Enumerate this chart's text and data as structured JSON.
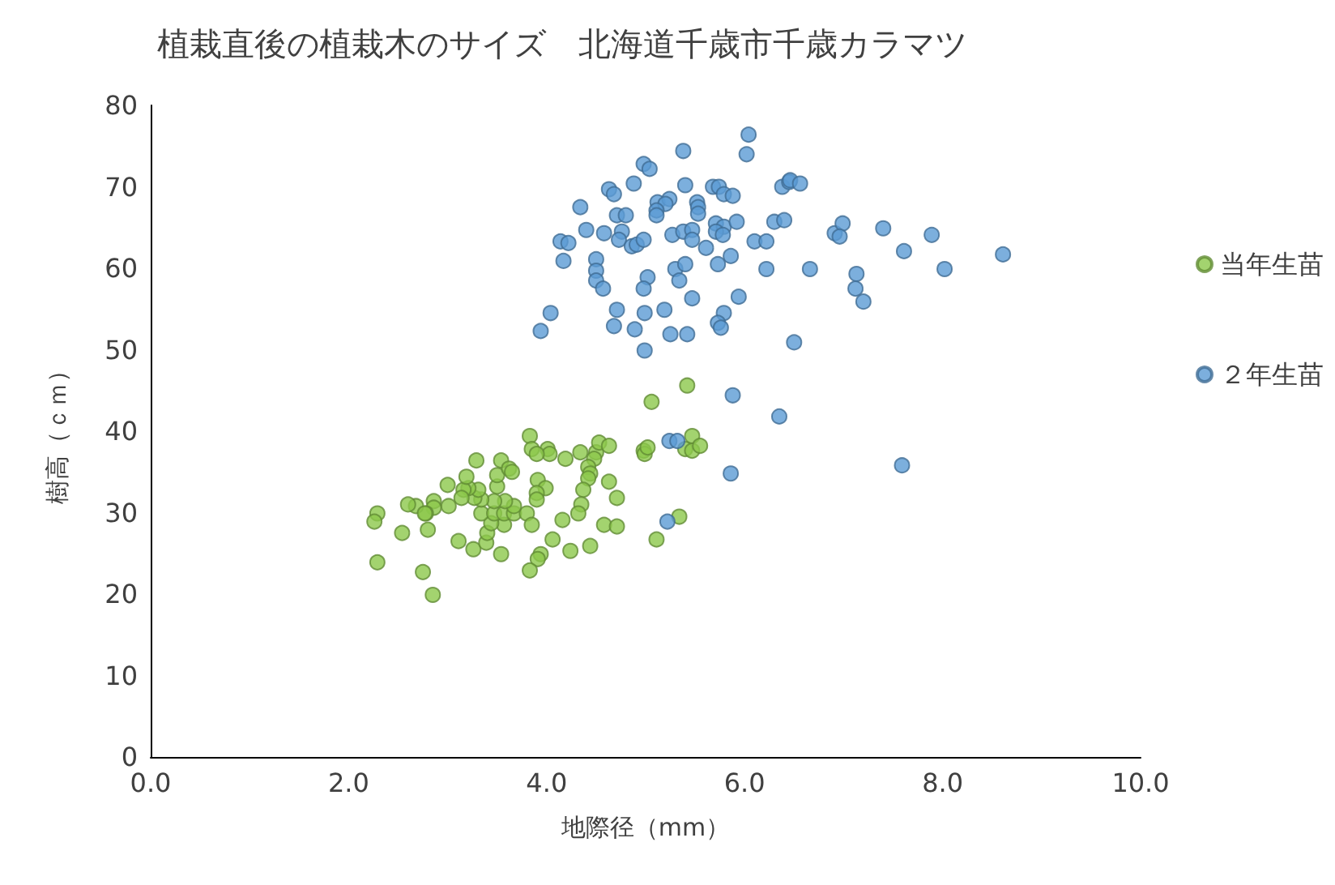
{
  "chart_data": {
    "type": "scatter",
    "title": "植栽直後の植栽木のサイズ　北海道千歳市千歳カラマツ",
    "xlabel": "地際径（mm）",
    "ylabel": "樹高（ｃｍ）",
    "xlim": [
      0,
      10
    ],
    "xticks": [
      {
        "value": 0,
        "label": "0.0"
      },
      {
        "value": 2,
        "label": "2.0"
      },
      {
        "value": 4,
        "label": "4.0"
      },
      {
        "value": 6,
        "label": "6.0"
      },
      {
        "value": 8,
        "label": "8.0"
      },
      {
        "value": 10,
        "label": "10.0"
      }
    ],
    "ylim": [
      0,
      80
    ],
    "yticks": [
      0,
      10,
      20,
      30,
      40,
      50,
      60,
      70,
      80
    ],
    "grid": false,
    "legend": "right",
    "marker": "circle",
    "series": [
      {
        "name": "当年生苗",
        "color": "#8cc84b",
        "x": [
          5.42,
          5.06,
          3.83,
          3.85,
          4.01,
          4.03,
          3.9,
          4.19,
          4.34,
          4.5,
          4.53,
          4.63,
          4.48,
          4.42,
          4.44,
          4.42,
          4.37,
          4.63,
          4.71,
          4.35,
          4.32,
          4.16,
          4.58,
          4.71,
          4.44,
          4.24,
          4.06,
          3.94,
          3.91,
          3.83,
          3.54,
          3.26,
          3.11,
          3.39,
          3.4,
          3.57,
          3.44,
          3.34,
          3.47,
          3.57,
          3.67,
          3.8,
          3.85,
          3.67,
          3.58,
          3.47,
          3.34,
          3.27,
          3.31,
          3.21,
          3.16,
          3.14,
          3.01,
          2.86,
          2.86,
          2.78,
          2.68,
          2.6,
          2.77,
          3.0,
          3.19,
          3.29,
          3.5,
          3.5,
          3.54,
          3.62,
          3.65,
          3.91,
          3.99,
          3.9,
          3.9,
          2.29,
          2.26,
          2.54,
          2.8,
          2.29,
          2.75,
          2.85,
          4.98,
          4.99,
          5.02,
          5.34,
          5.11,
          5.47,
          5.4,
          5.47,
          5.55
        ],
        "values": [
          45.6,
          43.6,
          39.4,
          37.8,
          37.8,
          37.2,
          37.2,
          36.6,
          37.4,
          37.4,
          38.6,
          38.2,
          36.6,
          35.6,
          34.8,
          34.2,
          32.8,
          33.8,
          31.8,
          31.0,
          29.9,
          29.1,
          28.5,
          28.3,
          25.9,
          25.3,
          26.7,
          24.9,
          24.3,
          22.9,
          24.9,
          25.5,
          26.5,
          26.3,
          27.5,
          28.5,
          28.7,
          29.9,
          29.9,
          29.9,
          29.9,
          29.9,
          28.5,
          30.8,
          31.4,
          31.4,
          31.6,
          31.8,
          32.8,
          33.0,
          32.8,
          31.8,
          30.8,
          31.4,
          30.6,
          29.9,
          30.8,
          31.0,
          29.9,
          33.4,
          34.4,
          36.4,
          33.2,
          34.6,
          36.4,
          35.4,
          35.0,
          34.0,
          33.0,
          32.4,
          31.6,
          29.9,
          28.9,
          27.5,
          27.9,
          23.9,
          22.7,
          19.9,
          37.6,
          37.2,
          38.0,
          29.5,
          26.7,
          39.4,
          37.8,
          37.6,
          38.2
        ]
      },
      {
        "name": "２年生苗",
        "color": "#5b9bd5",
        "x": [
          6.04,
          6.02,
          5.38,
          4.98,
          5.04,
          4.88,
          4.63,
          4.68,
          4.34,
          5.4,
          5.68,
          5.74,
          5.79,
          5.88,
          6.38,
          6.45,
          5.12,
          5.24,
          5.2,
          5.11,
          5.11,
          5.52,
          5.53,
          5.53,
          4.71,
          4.8,
          4.4,
          4.58,
          4.76,
          4.73,
          4.86,
          4.91,
          4.98,
          5.27,
          5.38,
          5.47,
          5.47,
          5.71,
          5.79,
          5.71,
          5.78,
          5.92,
          5.61,
          5.86,
          5.73,
          6.1,
          6.22,
          6.3,
          6.4,
          6.22,
          4.14,
          4.22,
          4.17,
          4.5,
          4.5,
          4.5,
          4.57,
          5.02,
          4.98,
          5.3,
          5.4,
          5.34,
          5.47,
          5.94,
          5.79,
          5.73,
          5.76,
          4.71,
          4.99,
          5.19,
          4.68,
          4.89,
          5.25,
          5.42,
          4.99,
          4.04,
          3.94,
          6.5,
          6.46,
          6.56,
          6.66,
          6.91,
          6.99,
          6.96,
          7.4,
          7.61,
          7.89,
          8.02,
          8.61,
          7.13,
          7.12,
          7.2,
          6.35,
          7.59,
          5.88,
          5.24,
          5.32,
          5.86,
          5.22
        ],
        "values": [
          76.4,
          74.0,
          74.4,
          72.8,
          72.2,
          70.4,
          69.7,
          69.1,
          67.5,
          70.2,
          70.0,
          70.0,
          69.1,
          68.9,
          70.0,
          70.6,
          68.1,
          68.5,
          67.9,
          67.1,
          66.5,
          68.1,
          67.5,
          66.7,
          66.5,
          66.5,
          64.7,
          64.3,
          64.5,
          63.5,
          62.7,
          62.9,
          63.5,
          64.1,
          64.5,
          64.7,
          63.5,
          65.5,
          65.1,
          64.5,
          64.1,
          65.7,
          62.5,
          61.5,
          60.5,
          63.3,
          63.3,
          65.7,
          65.9,
          59.9,
          63.3,
          63.1,
          60.9,
          61.1,
          59.7,
          58.5,
          57.5,
          58.9,
          57.5,
          59.9,
          60.5,
          58.5,
          56.3,
          56.5,
          54.5,
          53.3,
          52.7,
          54.9,
          54.5,
          54.9,
          52.9,
          52.5,
          51.9,
          51.9,
          49.9,
          54.5,
          52.3,
          50.9,
          70.8,
          70.4,
          59.9,
          64.3,
          65.5,
          63.9,
          64.9,
          62.1,
          64.1,
          59.9,
          61.7,
          59.3,
          57.5,
          55.9,
          41.8,
          35.8,
          44.4,
          38.8,
          38.8,
          34.8,
          28.9
        ]
      }
    ]
  }
}
